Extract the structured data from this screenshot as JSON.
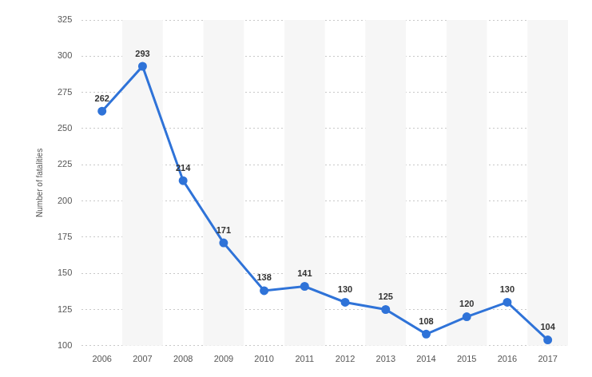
{
  "chart_data": {
    "type": "line",
    "y_label": "Number of fatalities",
    "categories": [
      "2006",
      "2007",
      "2008",
      "2009",
      "2010",
      "2011",
      "2012",
      "2013",
      "2014",
      "2015",
      "2016",
      "2017"
    ],
    "values": [
      262,
      293,
      214,
      171,
      138,
      141,
      130,
      125,
      108,
      120,
      130,
      104
    ],
    "color": "#2f73d8",
    "marker": "circle",
    "line_style": "solid",
    "ylim": [
      100,
      325
    ],
    "yticks": [
      100,
      125,
      150,
      175,
      200,
      225,
      250,
      275,
      300,
      325
    ],
    "grid": true,
    "data_labels": true
  }
}
